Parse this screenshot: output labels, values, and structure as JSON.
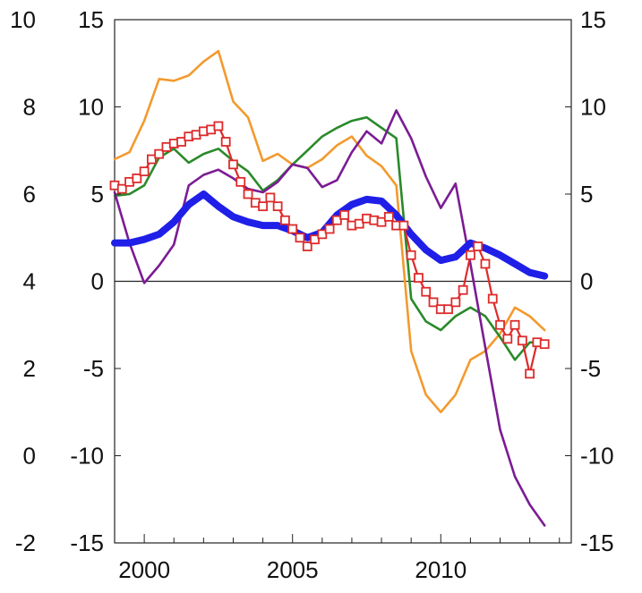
{
  "chart_data": {
    "type": "line",
    "title": "",
    "xlabel": "",
    "ylabel": "",
    "xlim": [
      1999.0,
      2014.4
    ],
    "ylim": [
      -15,
      15
    ],
    "y_right_ticks": [
      "15",
      "10",
      "5",
      "0",
      "-5",
      "-10",
      "-15"
    ],
    "y_left_outer_ticks": [
      "10",
      "8",
      "6",
      "4",
      "2",
      "0",
      "-2"
    ],
    "y_left_inner_ticks": [
      "15",
      "10",
      "5",
      "0",
      "-5",
      "-10",
      "-15"
    ],
    "x_ticks": [
      {
        "label": "2000",
        "value": 2000
      },
      {
        "label": "2005",
        "value": 2005
      },
      {
        "label": "2010",
        "value": 2010
      }
    ],
    "zero_line": true,
    "grid": false,
    "legend": "none",
    "series": [
      {
        "color": "#f39a2e",
        "line_width": 2.6,
        "marker": "none",
        "x": [
          1999.0,
          1999.5,
          2000.0,
          2000.5,
          2001.0,
          2001.5,
          2002.0,
          2002.5,
          2003.0,
          2003.5,
          2004.0,
          2004.5,
          2005.0,
          2005.5,
          2006.0,
          2006.5,
          2007.0,
          2007.5,
          2008.0,
          2008.5,
          2009.0,
          2009.5,
          2010.0,
          2010.5,
          2011.0,
          2011.5,
          2012.0,
          2012.5,
          2013.0,
          2013.5
        ],
        "y": [
          7.0,
          7.4,
          9.2,
          11.6,
          11.5,
          11.8,
          12.6,
          13.2,
          10.3,
          9.4,
          6.9,
          7.3,
          6.7,
          6.5,
          7.0,
          7.8,
          8.3,
          7.2,
          6.6,
          5.5,
          -4.0,
          -6.5,
          -7.5,
          -6.5,
          -4.5,
          -4.0,
          -3.0,
          -1.5,
          -2.0,
          -2.8
        ]
      },
      {
        "color": "#2a8a2a",
        "line_width": 2.6,
        "marker": "none",
        "x": [
          1999.0,
          1999.5,
          2000.0,
          2000.5,
          2001.0,
          2001.5,
          2002.0,
          2002.5,
          2003.0,
          2003.5,
          2004.0,
          2004.5,
          2005.0,
          2005.5,
          2006.0,
          2006.5,
          2007.0,
          2007.5,
          2008.0,
          2008.5,
          2009.0,
          2009.5,
          2010.0,
          2010.5,
          2011.0,
          2011.5,
          2012.0,
          2012.5,
          2013.0,
          2013.5
        ],
        "y": [
          4.9,
          5.0,
          5.5,
          7.1,
          7.6,
          6.8,
          7.3,
          7.6,
          6.9,
          6.3,
          5.2,
          5.8,
          6.7,
          7.5,
          8.3,
          8.8,
          9.2,
          9.4,
          8.8,
          8.2,
          -1.0,
          -2.3,
          -2.8,
          -2.0,
          -1.5,
          -2.0,
          -3.2,
          -4.5,
          -3.5,
          -3.5
        ]
      },
      {
        "color": "#7b1c94",
        "line_width": 2.6,
        "marker": "none",
        "x": [
          1999.0,
          1999.5,
          2000.0,
          2000.5,
          2001.0,
          2001.5,
          2002.0,
          2002.5,
          2003.0,
          2003.5,
          2004.0,
          2004.5,
          2005.0,
          2005.5,
          2006.0,
          2006.5,
          2007.0,
          2007.5,
          2008.0,
          2008.5,
          2009.0,
          2009.5,
          2010.0,
          2010.5,
          2011.0,
          2011.5,
          2012.0,
          2012.5,
          2013.0,
          2013.5
        ],
        "y": [
          5.1,
          2.2,
          -0.1,
          0.9,
          2.1,
          5.5,
          6.1,
          6.4,
          5.9,
          5.3,
          5.1,
          5.7,
          6.7,
          6.5,
          5.4,
          5.8,
          7.4,
          8.6,
          7.9,
          9.8,
          8.2,
          6.0,
          4.2,
          5.6,
          1.0,
          -3.8,
          -8.5,
          -11.2,
          -12.8,
          -14.0
        ]
      },
      {
        "color": "#1f1fe8",
        "line_width": 8,
        "marker": "none",
        "x": [
          1999.0,
          1999.5,
          2000.0,
          2000.5,
          2001.0,
          2001.5,
          2002.0,
          2002.5,
          2003.0,
          2003.5,
          2004.0,
          2004.5,
          2005.0,
          2005.5,
          2006.0,
          2006.5,
          2007.0,
          2007.5,
          2008.0,
          2008.5,
          2009.0,
          2009.5,
          2010.0,
          2010.5,
          2011.0,
          2011.5,
          2012.0,
          2012.5,
          2013.0,
          2013.5
        ],
        "y": [
          2.2,
          2.2,
          2.4,
          2.7,
          3.4,
          4.4,
          5.0,
          4.3,
          3.7,
          3.4,
          3.2,
          3.2,
          2.9,
          2.5,
          2.8,
          3.8,
          4.4,
          4.7,
          4.6,
          3.8,
          2.7,
          1.8,
          1.2,
          1.4,
          2.2,
          1.9,
          1.5,
          1.0,
          0.5,
          0.3
        ]
      },
      {
        "color": "#dd2b2b",
        "line_width": 2.2,
        "marker": "square",
        "x": [
          1999.0,
          1999.25,
          1999.5,
          1999.75,
          2000.0,
          2000.25,
          2000.5,
          2000.75,
          2001.0,
          2001.25,
          2001.5,
          2001.75,
          2002.0,
          2002.25,
          2002.5,
          2002.75,
          2003.0,
          2003.25,
          2003.5,
          2003.75,
          2004.0,
          2004.25,
          2004.5,
          2004.75,
          2005.0,
          2005.25,
          2005.5,
          2005.75,
          2006.0,
          2006.25,
          2006.5,
          2006.75,
          2007.0,
          2007.25,
          2007.5,
          2007.75,
          2008.0,
          2008.25,
          2008.5,
          2008.75,
          2009.0,
          2009.25,
          2009.5,
          2009.75,
          2010.0,
          2010.25,
          2010.5,
          2010.75,
          2011.0,
          2011.25,
          2011.5,
          2011.75,
          2012.0,
          2012.25,
          2012.5,
          2012.75,
          2013.0,
          2013.25,
          2013.5
        ],
        "y": [
          5.5,
          5.3,
          5.7,
          5.9,
          6.3,
          7.0,
          7.3,
          7.7,
          7.9,
          8.0,
          8.3,
          8.4,
          8.6,
          8.7,
          8.9,
          8.0,
          6.7,
          5.7,
          5.0,
          4.5,
          4.3,
          4.8,
          4.3,
          3.5,
          3.0,
          2.5,
          2.0,
          2.4,
          2.7,
          3.0,
          3.5,
          3.8,
          3.2,
          3.3,
          3.6,
          3.5,
          3.4,
          3.7,
          3.2,
          3.2,
          1.5,
          0.2,
          -0.6,
          -1.2,
          -1.6,
          -1.6,
          -1.2,
          -0.5,
          1.5,
          2.0,
          1.0,
          -1.0,
          -2.5,
          -3.3,
          -2.5,
          -3.4,
          -5.3,
          -3.5,
          -3.6
        ]
      }
    ]
  }
}
